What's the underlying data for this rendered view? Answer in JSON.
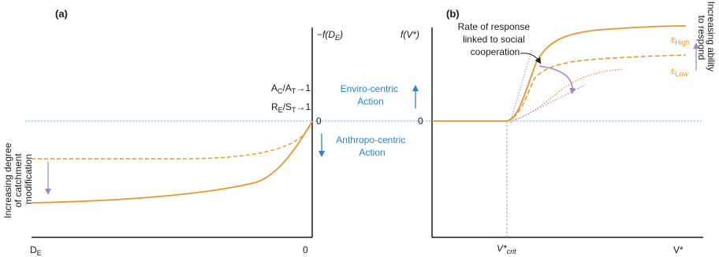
{
  "panel_a": {
    "label": "(a)",
    "y_axis_label": "−f(D",
    "y_axis_label_sub": "E",
    "y_axis_label_close": ")",
    "zero_label": "0",
    "x_axis_left": "D",
    "x_axis_left_sub": "E",
    "x_axis_right": "0",
    "ratio1_a": "A",
    "ratio1_a_sub": "C",
    "ratio1_b": "/A",
    "ratio1_b_sub": "T",
    "ratio1_c": "→1",
    "ratio2_a": "R",
    "ratio2_a_sub": "E",
    "ratio2_b": "/S",
    "ratio2_b_sub": "T",
    "ratio2_c": "→1",
    "side_label": [
      "Increasing degree",
      "of catchment",
      "modification"
    ],
    "enviro_label": [
      "Enviro-centric",
      "Action"
    ],
    "anthropo_label": [
      "Anthropo-centric",
      "Action"
    ]
  },
  "panel_b": {
    "label": "(b)",
    "y_axis_label": "f(V*)",
    "zero_label": "0",
    "x_crit": "V*",
    "x_crit_sub": "crit",
    "x_axis_right": "V*",
    "annotation": [
      "Rate of response",
      "linked to social",
      "cooperation"
    ],
    "eps_high": "ε",
    "eps_high_sub": "High",
    "eps_low": "ε",
    "eps_low_sub": "Low",
    "side_label": [
      "Increasing ability",
      "to respond"
    ]
  },
  "colors": {
    "curve": "#e8962e",
    "baseline": "#4a90d9",
    "blue_text": "#2b83c0",
    "purple": "#9b87c9",
    "grey_dash": "#8a8ab0",
    "axis": "#1a1a1a"
  }
}
